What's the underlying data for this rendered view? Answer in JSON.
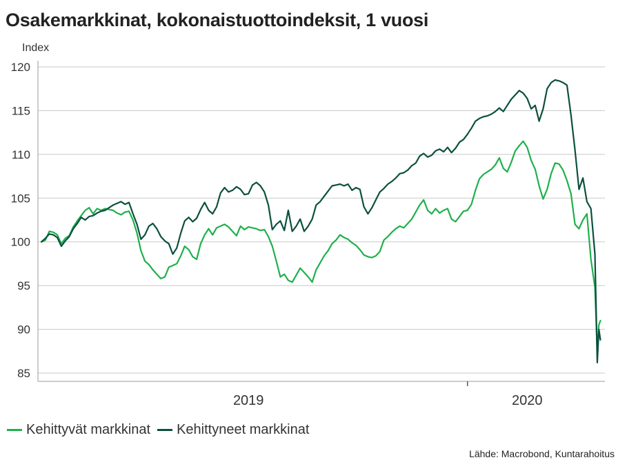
{
  "chart_data": {
    "type": "line",
    "title": "Osakemarkkinat, kokonaistuottoindeksit, 1 vuosi",
    "ylabel": "Index",
    "ylim": [
      84,
      122
    ],
    "yticks": [
      85,
      90,
      95,
      100,
      105,
      110,
      115,
      120
    ],
    "xlim": [
      0,
      68
    ],
    "xtick_labels": [
      {
        "label": "2019",
        "x": 26
      },
      {
        "label": "2020",
        "x": 61
      }
    ],
    "year_divider_x": 53.5,
    "grid": true,
    "legend_position": "bottom-left",
    "source": "Lähde: Macrobond, Kuntarahoitus",
    "series": [
      {
        "name": "Kehittyvät markkinat",
        "color": "#1db04b",
        "points": [
          [
            0,
            100
          ],
          [
            0.5,
            100.2
          ],
          [
            1,
            101.2
          ],
          [
            1.5,
            101.1
          ],
          [
            2,
            100.8
          ],
          [
            2.5,
            99.8
          ],
          [
            3,
            100.4
          ],
          [
            3.5,
            100.7
          ],
          [
            4,
            101.7
          ],
          [
            4.5,
            102.4
          ],
          [
            5,
            103.0
          ],
          [
            5.5,
            103.6
          ],
          [
            6,
            103.9
          ],
          [
            6.5,
            103.2
          ],
          [
            7,
            103.8
          ],
          [
            7.5,
            103.6
          ],
          [
            8,
            103.8
          ],
          [
            8.5,
            103.7
          ],
          [
            9,
            103.6
          ],
          [
            9.5,
            103.3
          ],
          [
            10,
            103.1
          ],
          [
            10.5,
            103.4
          ],
          [
            11,
            103.5
          ],
          [
            11.5,
            102.5
          ],
          [
            12,
            101.0
          ],
          [
            12.5,
            99.0
          ],
          [
            13,
            97.8
          ],
          [
            13.5,
            97.4
          ],
          [
            14,
            96.8
          ],
          [
            14.5,
            96.3
          ],
          [
            15,
            95.8
          ],
          [
            15.5,
            96.0
          ],
          [
            16,
            97.1
          ],
          [
            16.5,
            97.3
          ],
          [
            17,
            97.5
          ],
          [
            17.5,
            98.4
          ],
          [
            18,
            99.5
          ],
          [
            18.5,
            99.1
          ],
          [
            19,
            98.3
          ],
          [
            19.5,
            98.0
          ],
          [
            20,
            99.8
          ],
          [
            20.5,
            100.8
          ],
          [
            21,
            101.5
          ],
          [
            21.5,
            100.8
          ],
          [
            22,
            101.6
          ],
          [
            22.5,
            101.8
          ],
          [
            23,
            102.0
          ],
          [
            23.5,
            101.7
          ],
          [
            24,
            101.2
          ],
          [
            24.5,
            100.7
          ],
          [
            25,
            101.8
          ],
          [
            25.5,
            101.4
          ],
          [
            26,
            101.7
          ],
          [
            26.5,
            101.6
          ],
          [
            27,
            101.5
          ],
          [
            27.5,
            101.3
          ],
          [
            28,
            101.4
          ],
          [
            28.5,
            100.6
          ],
          [
            29,
            99.5
          ],
          [
            29.5,
            97.8
          ],
          [
            30,
            96.0
          ],
          [
            30.5,
            96.3
          ],
          [
            31,
            95.6
          ],
          [
            31.5,
            95.4
          ],
          [
            32,
            96.2
          ],
          [
            32.5,
            97.0
          ],
          [
            33,
            96.5
          ],
          [
            33.5,
            96.0
          ],
          [
            34,
            95.4
          ],
          [
            34.5,
            96.8
          ],
          [
            35,
            97.6
          ],
          [
            35.5,
            98.4
          ],
          [
            36,
            99.0
          ],
          [
            36.5,
            99.8
          ],
          [
            37,
            100.2
          ],
          [
            37.5,
            100.8
          ],
          [
            38,
            100.5
          ],
          [
            38.5,
            100.3
          ],
          [
            39,
            99.9
          ],
          [
            39.5,
            99.6
          ],
          [
            40,
            99.1
          ],
          [
            40.5,
            98.5
          ],
          [
            41,
            98.3
          ],
          [
            41.5,
            98.2
          ],
          [
            42,
            98.4
          ],
          [
            42.5,
            98.9
          ],
          [
            43,
            100.2
          ],
          [
            43.5,
            100.6
          ],
          [
            44,
            101.1
          ],
          [
            44.5,
            101.5
          ],
          [
            45,
            101.8
          ],
          [
            45.5,
            101.6
          ],
          [
            46,
            102.1
          ],
          [
            46.5,
            102.6
          ],
          [
            47,
            103.4
          ],
          [
            47.5,
            104.2
          ],
          [
            48,
            104.8
          ],
          [
            48.5,
            103.6
          ],
          [
            49,
            103.2
          ],
          [
            49.5,
            103.8
          ],
          [
            50,
            103.3
          ],
          [
            50.5,
            103.6
          ],
          [
            51,
            103.8
          ],
          [
            51.5,
            102.6
          ],
          [
            52,
            102.3
          ],
          [
            52.5,
            102.9
          ],
          [
            53,
            103.5
          ],
          [
            53.5,
            103.6
          ],
          [
            54,
            104.3
          ],
          [
            54.5,
            105.9
          ],
          [
            55,
            107.2
          ],
          [
            55.5,
            107.7
          ],
          [
            56,
            108.0
          ],
          [
            56.5,
            108.3
          ],
          [
            57,
            108.8
          ],
          [
            57.5,
            109.6
          ],
          [
            58,
            108.4
          ],
          [
            58.5,
            108.0
          ],
          [
            59,
            109.1
          ],
          [
            59.5,
            110.4
          ],
          [
            60,
            111.0
          ],
          [
            60.5,
            111.5
          ],
          [
            61,
            110.8
          ],
          [
            61.5,
            109.3
          ],
          [
            62,
            108.3
          ],
          [
            62.5,
            106.4
          ],
          [
            63,
            104.9
          ],
          [
            63.5,
            106.0
          ],
          [
            64,
            107.8
          ],
          [
            64.5,
            109.0
          ],
          [
            65,
            108.9
          ],
          [
            65.5,
            108.2
          ],
          [
            66,
            107.0
          ],
          [
            66.5,
            105.5
          ],
          [
            67,
            102.0
          ],
          [
            67.5,
            101.5
          ],
          [
            68,
            102.5
          ],
          [
            68.5,
            103.2
          ],
          [
            69,
            98.0
          ],
          [
            69.5,
            94.8
          ],
          [
            69.8,
            87.5
          ],
          [
            70,
            90.5
          ],
          [
            70.2,
            91.0
          ]
        ]
      },
      {
        "name": "Kehittyneet markkinat",
        "color": "#0b4f3e",
        "points": [
          [
            0,
            100
          ],
          [
            0.5,
            100.4
          ],
          [
            1,
            100.9
          ],
          [
            1.5,
            100.8
          ],
          [
            2,
            100.5
          ],
          [
            2.5,
            99.5
          ],
          [
            3,
            100.1
          ],
          [
            3.5,
            100.6
          ],
          [
            4,
            101.5
          ],
          [
            4.5,
            102.1
          ],
          [
            5,
            102.8
          ],
          [
            5.5,
            102.5
          ],
          [
            6,
            102.9
          ],
          [
            6.5,
            103.0
          ],
          [
            7,
            103.3
          ],
          [
            7.5,
            103.5
          ],
          [
            8,
            103.6
          ],
          [
            8.5,
            103.9
          ],
          [
            9,
            104.2
          ],
          [
            9.5,
            104.4
          ],
          [
            10,
            104.6
          ],
          [
            10.5,
            104.3
          ],
          [
            11,
            104.5
          ],
          [
            11.5,
            103.2
          ],
          [
            12,
            102.0
          ],
          [
            12.5,
            100.3
          ],
          [
            13,
            100.8
          ],
          [
            13.5,
            101.8
          ],
          [
            14,
            102.1
          ],
          [
            14.5,
            101.5
          ],
          [
            15,
            100.6
          ],
          [
            15.5,
            100.1
          ],
          [
            16,
            99.8
          ],
          [
            16.5,
            98.6
          ],
          [
            17,
            99.3
          ],
          [
            17.5,
            101.0
          ],
          [
            18,
            102.4
          ],
          [
            18.5,
            102.8
          ],
          [
            19,
            102.3
          ],
          [
            19.5,
            102.7
          ],
          [
            20,
            103.7
          ],
          [
            20.5,
            104.5
          ],
          [
            21,
            103.6
          ],
          [
            21.5,
            103.2
          ],
          [
            22,
            104.0
          ],
          [
            22.5,
            105.6
          ],
          [
            23,
            106.2
          ],
          [
            23.5,
            105.7
          ],
          [
            24,
            105.9
          ],
          [
            24.5,
            106.3
          ],
          [
            25,
            106.0
          ],
          [
            25.5,
            105.4
          ],
          [
            26,
            105.5
          ],
          [
            26.5,
            106.5
          ],
          [
            27,
            106.8
          ],
          [
            27.5,
            106.4
          ],
          [
            28,
            105.7
          ],
          [
            28.5,
            104.2
          ],
          [
            29,
            101.4
          ],
          [
            29.5,
            102.0
          ],
          [
            30,
            102.4
          ],
          [
            30.5,
            101.3
          ],
          [
            31,
            103.6
          ],
          [
            31.5,
            101.2
          ],
          [
            32,
            101.8
          ],
          [
            32.5,
            102.6
          ],
          [
            33,
            101.2
          ],
          [
            33.5,
            101.8
          ],
          [
            34,
            102.6
          ],
          [
            34.5,
            104.2
          ],
          [
            35,
            104.6
          ],
          [
            35.5,
            105.2
          ],
          [
            36,
            105.8
          ],
          [
            36.5,
            106.4
          ],
          [
            37,
            106.5
          ],
          [
            37.5,
            106.6
          ],
          [
            38,
            106.4
          ],
          [
            38.5,
            106.6
          ],
          [
            39,
            105.9
          ],
          [
            39.5,
            106.2
          ],
          [
            40,
            106.0
          ],
          [
            40.5,
            104.0
          ],
          [
            41,
            103.2
          ],
          [
            41.5,
            103.9
          ],
          [
            42,
            104.8
          ],
          [
            42.5,
            105.7
          ],
          [
            43,
            106.1
          ],
          [
            43.5,
            106.6
          ],
          [
            44,
            106.9
          ],
          [
            44.5,
            107.3
          ],
          [
            45,
            107.8
          ],
          [
            45.5,
            107.9
          ],
          [
            46,
            108.2
          ],
          [
            46.5,
            108.7
          ],
          [
            47,
            109.0
          ],
          [
            47.5,
            109.8
          ],
          [
            48,
            110.1
          ],
          [
            48.5,
            109.7
          ],
          [
            49,
            109.9
          ],
          [
            49.5,
            110.4
          ],
          [
            50,
            110.6
          ],
          [
            50.5,
            110.3
          ],
          [
            51,
            110.8
          ],
          [
            51.5,
            110.2
          ],
          [
            52,
            110.7
          ],
          [
            52.5,
            111.4
          ],
          [
            53,
            111.7
          ],
          [
            53.5,
            112.3
          ],
          [
            54,
            113.0
          ],
          [
            54.5,
            113.8
          ],
          [
            55,
            114.1
          ],
          [
            55.5,
            114.3
          ],
          [
            56,
            114.4
          ],
          [
            56.5,
            114.6
          ],
          [
            57,
            114.9
          ],
          [
            57.5,
            115.3
          ],
          [
            58,
            114.9
          ],
          [
            58.5,
            115.6
          ],
          [
            59,
            116.3
          ],
          [
            59.5,
            116.8
          ],
          [
            60,
            117.3
          ],
          [
            60.5,
            117.0
          ],
          [
            61,
            116.4
          ],
          [
            61.5,
            115.2
          ],
          [
            62,
            115.6
          ],
          [
            62.5,
            113.8
          ],
          [
            63,
            115.2
          ],
          [
            63.5,
            117.5
          ],
          [
            64,
            118.2
          ],
          [
            64.5,
            118.5
          ],
          [
            65,
            118.4
          ],
          [
            65.5,
            118.2
          ],
          [
            66,
            117.9
          ],
          [
            66.5,
            114.5
          ],
          [
            67,
            110.5
          ],
          [
            67.5,
            106.0
          ],
          [
            68,
            107.3
          ],
          [
            68.5,
            104.6
          ],
          [
            69,
            103.8
          ],
          [
            69.5,
            98.6
          ],
          [
            69.8,
            86.2
          ],
          [
            70,
            90.0
          ],
          [
            70.2,
            88.8
          ]
        ]
      }
    ]
  }
}
